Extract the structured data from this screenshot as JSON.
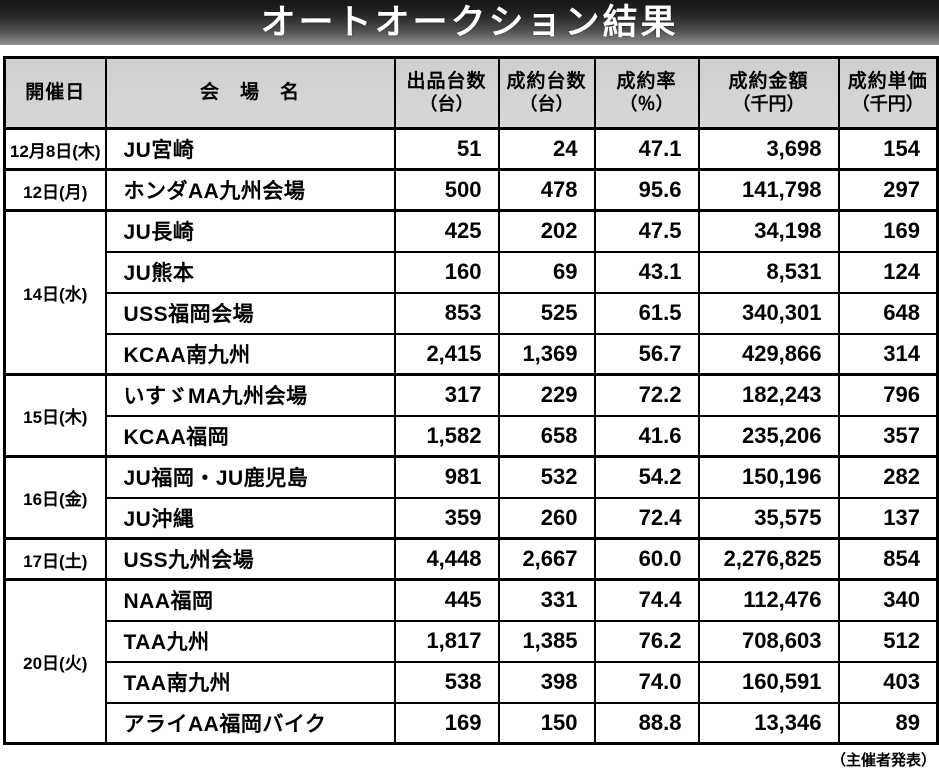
{
  "title": "オートオークション結果",
  "table": {
    "headers": [
      {
        "label": "開催日",
        "sub": ""
      },
      {
        "label": "会　場　名",
        "sub": ""
      },
      {
        "label": "出品台数",
        "sub": "（台）"
      },
      {
        "label": "成約台数",
        "sub": "（台）"
      },
      {
        "label": "成約率",
        "sub": "（％）"
      },
      {
        "label": "成約金額",
        "sub": "（千円）"
      },
      {
        "label": "成約単価",
        "sub": "（千円）"
      }
    ],
    "groups": [
      {
        "date": "12月8日(木)",
        "rows": [
          {
            "venue": "JU宮崎",
            "listed": "51",
            "sold": "24",
            "rate": "47.1",
            "amount": "3,698",
            "unit": "154"
          }
        ]
      },
      {
        "date": "12日(月)",
        "rows": [
          {
            "venue": "ホンダAA九州会場",
            "listed": "500",
            "sold": "478",
            "rate": "95.6",
            "amount": "141,798",
            "unit": "297"
          }
        ]
      },
      {
        "date": "14日(水)",
        "rows": [
          {
            "venue": "JU長崎",
            "listed": "425",
            "sold": "202",
            "rate": "47.5",
            "amount": "34,198",
            "unit": "169"
          },
          {
            "venue": "JU熊本",
            "listed": "160",
            "sold": "69",
            "rate": "43.1",
            "amount": "8,531",
            "unit": "124"
          },
          {
            "venue": "USS福岡会場",
            "listed": "853",
            "sold": "525",
            "rate": "61.5",
            "amount": "340,301",
            "unit": "648"
          },
          {
            "venue": "KCAA南九州",
            "listed": "2,415",
            "sold": "1,369",
            "rate": "56.7",
            "amount": "429,866",
            "unit": "314"
          }
        ]
      },
      {
        "date": "15日(木)",
        "rows": [
          {
            "venue": "いすゞMA九州会場",
            "listed": "317",
            "sold": "229",
            "rate": "72.2",
            "amount": "182,243",
            "unit": "796"
          },
          {
            "venue": "KCAA福岡",
            "listed": "1,582",
            "sold": "658",
            "rate": "41.6",
            "amount": "235,206",
            "unit": "357"
          }
        ]
      },
      {
        "date": "16日(金)",
        "rows": [
          {
            "venue": "JU福岡・JU鹿児島",
            "listed": "981",
            "sold": "532",
            "rate": "54.2",
            "amount": "150,196",
            "unit": "282"
          },
          {
            "venue": "JU沖縄",
            "listed": "359",
            "sold": "260",
            "rate": "72.4",
            "amount": "35,575",
            "unit": "137"
          }
        ]
      },
      {
        "date": "17日(土)",
        "rows": [
          {
            "venue": "USS九州会場",
            "listed": "4,448",
            "sold": "2,667",
            "rate": "60.0",
            "amount": "2,276,825",
            "unit": "854"
          }
        ]
      },
      {
        "date": "20日(火)",
        "rows": [
          {
            "venue": "NAA福岡",
            "listed": "445",
            "sold": "331",
            "rate": "74.4",
            "amount": "112,476",
            "unit": "340"
          },
          {
            "venue": "TAA九州",
            "listed": "1,817",
            "sold": "1,385",
            "rate": "76.2",
            "amount": "708,603",
            "unit": "512"
          },
          {
            "venue": "TAA南九州",
            "listed": "538",
            "sold": "398",
            "rate": "74.0",
            "amount": "160,591",
            "unit": "403"
          },
          {
            "venue": "アライAA福岡バイク",
            "listed": "169",
            "sold": "150",
            "rate": "88.8",
            "amount": "13,346",
            "unit": "89"
          }
        ]
      }
    ]
  },
  "footer": {
    "note": "（主催者発表）"
  },
  "colors": {
    "banner_top": "#161616",
    "banner_bottom": "#8d8d8d",
    "header_bg": "#d4d4d4",
    "border": "#000000",
    "text": "#000000",
    "title_text": "#ffffff"
  }
}
